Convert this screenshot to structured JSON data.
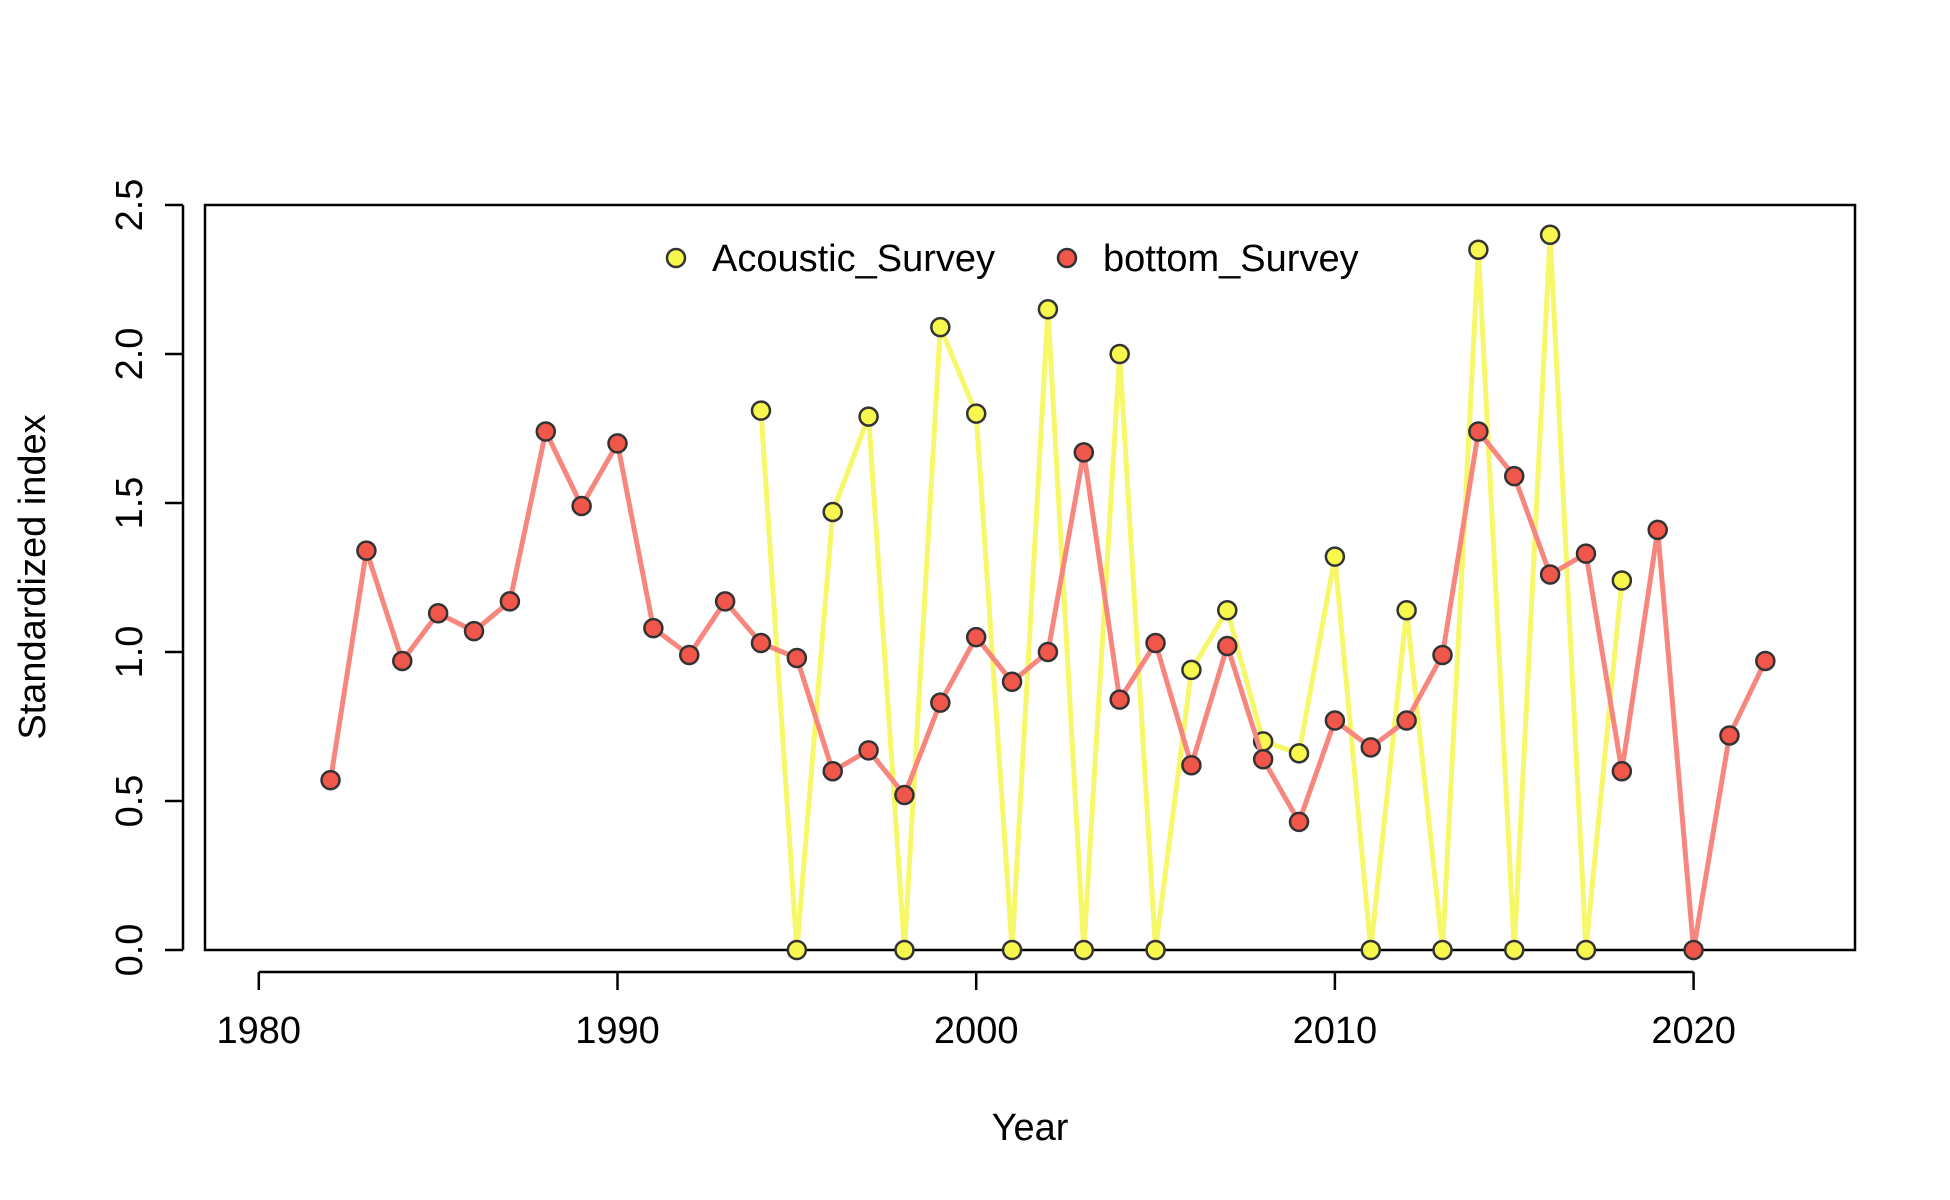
{
  "chart_data": {
    "type": "line",
    "title": "",
    "xlabel": "Year",
    "ylabel": "Standardized index",
    "xlim": [
      1978.5,
      2024.5
    ],
    "ylim": [
      0,
      2.5
    ],
    "xticks": [
      1980,
      1990,
      2000,
      2010,
      2020
    ],
    "yticks": [
      "0.0",
      "0.5",
      "1.0",
      "1.5",
      "2.0",
      "2.5"
    ],
    "grid": false,
    "legend_position": "top-center",
    "series": [
      {
        "name": "Acoustic_Survey",
        "line_color": "#f7f76a",
        "marker_color": "#f7f74d",
        "x": [
          1994,
          1995,
          1996,
          1997,
          1998,
          1999,
          2000,
          2001,
          2002,
          2003,
          2004,
          2005,
          2006,
          2007,
          2008,
          2009,
          2010,
          2011,
          2012,
          2013,
          2014,
          2015,
          2016,
          2017,
          2018
        ],
        "y": [
          1.81,
          0.0,
          1.47,
          1.79,
          0.0,
          2.09,
          1.8,
          0.0,
          2.15,
          0.0,
          2.0,
          0.0,
          0.94,
          1.14,
          0.7,
          0.66,
          1.32,
          0.0,
          1.14,
          0.0,
          2.35,
          0.0,
          2.4,
          0.0,
          1.24
        ]
      },
      {
        "name": "bottom_Survey",
        "line_color": "#f7867e",
        "marker_color": "#f0564a",
        "x": [
          1982,
          1983,
          1984,
          1985,
          1986,
          1987,
          1988,
          1989,
          1990,
          1991,
          1992,
          1993,
          1994,
          1995,
          1996,
          1997,
          1998,
          1999,
          2000,
          2001,
          2002,
          2003,
          2004,
          2005,
          2006,
          2007,
          2008,
          2009,
          2010,
          2011,
          2012,
          2013,
          2014,
          2015,
          2016,
          2017,
          2018,
          2019,
          2020,
          2021,
          2022
        ],
        "y": [
          0.57,
          1.34,
          0.97,
          1.13,
          1.07,
          1.17,
          1.74,
          1.49,
          1.7,
          1.08,
          0.99,
          1.17,
          1.03,
          0.98,
          0.6,
          0.67,
          0.52,
          0.83,
          1.05,
          0.9,
          1.0,
          1.67,
          0.84,
          1.03,
          0.62,
          1.02,
          0.64,
          0.43,
          0.77,
          0.68,
          0.77,
          0.99,
          1.74,
          1.59,
          1.26,
          1.33,
          0.6,
          1.41,
          0.0,
          0.72,
          0.97
        ]
      }
    ]
  }
}
